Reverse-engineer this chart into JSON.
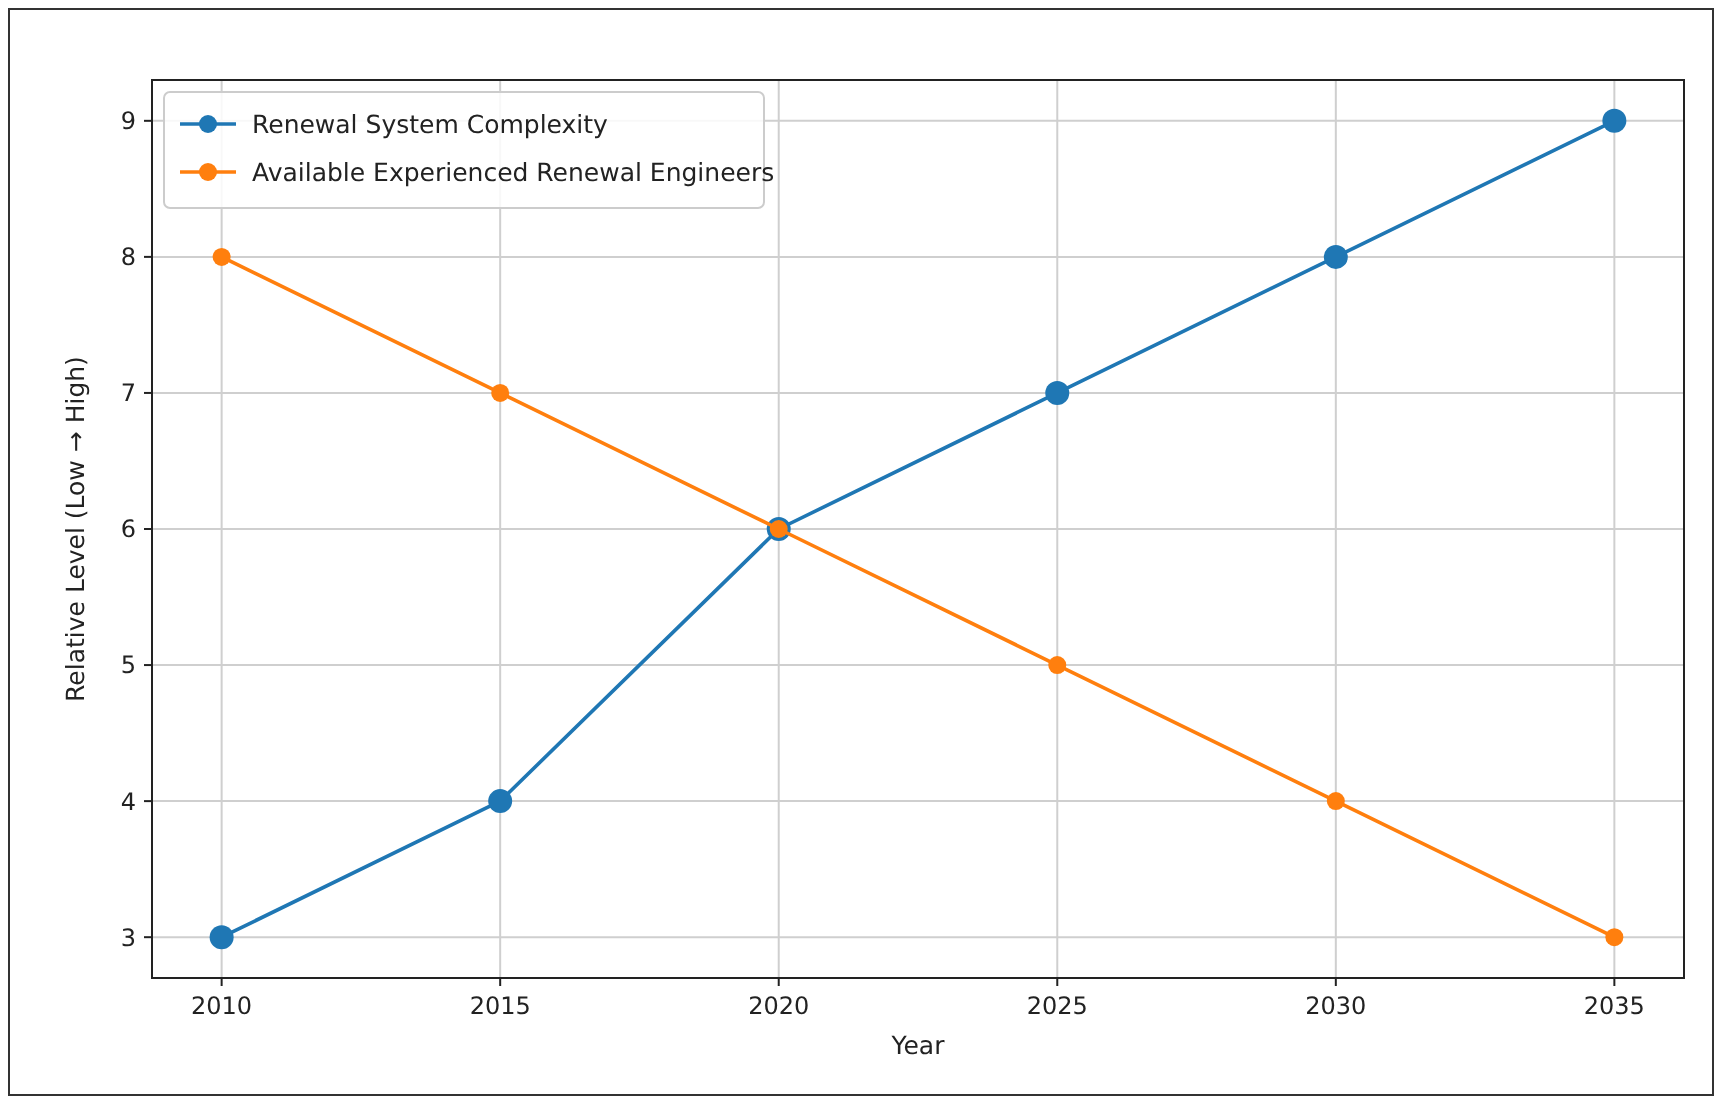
{
  "chart_data": {
    "type": "line",
    "xlabel": "Year",
    "ylabel": "Relative Level (Low → High)",
    "x": [
      2010,
      2015,
      2020,
      2025,
      2030,
      2035
    ],
    "series": [
      {
        "name": "Renewal System Complexity",
        "color": "#1f77b4",
        "values": [
          3,
          4,
          6,
          7,
          8,
          9
        ]
      },
      {
        "name": "Available Experienced Renewal Engineers",
        "color": "#ff7f0e",
        "values": [
          8,
          7,
          6,
          5,
          4,
          3
        ]
      }
    ],
    "xlim": [
      2008.75,
      2036.25
    ],
    "xticks": [
      2010,
      2015,
      2020,
      2025,
      2030,
      2035
    ],
    "ylim": [
      2.7,
      9.3
    ],
    "yticks": [
      3,
      4,
      5,
      6,
      7,
      8,
      9
    ],
    "grid": true,
    "legend": "top left",
    "marker": "circle",
    "line_style": "solid"
  }
}
